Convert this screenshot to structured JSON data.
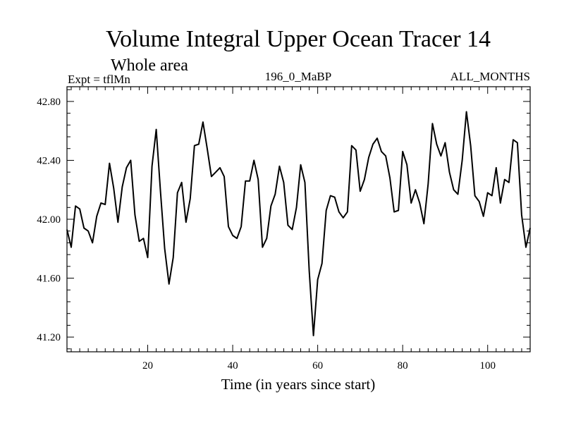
{
  "chart_data": {
    "type": "line",
    "title": "Volume Integral Upper Ocean Tracer 14",
    "subtitle": "Whole area",
    "expt_label": "Expt = tflMn",
    "center_label": "196_0_MaBP",
    "right_label": "ALL_MONTHS",
    "xlabel": "Time (in years since start)",
    "ylabel": "",
    "xlim": [
      1,
      110
    ],
    "ylim": [
      41.1,
      42.9
    ],
    "x_ticks": [
      20,
      40,
      60,
      80,
      100
    ],
    "x_tick_labels": [
      "20",
      "40",
      "60",
      "80",
      "100"
    ],
    "y_ticks": [
      41.2,
      41.6,
      42.0,
      42.4,
      42.8
    ],
    "y_tick_labels": [
      "41.20",
      "41.60",
      "42.00",
      "42.40",
      "42.80"
    ],
    "series": [
      {
        "name": "tracer14",
        "x": [
          1,
          2,
          3,
          4,
          5,
          6,
          7,
          8,
          9,
          10,
          11,
          12,
          13,
          14,
          15,
          16,
          17,
          18,
          19,
          20,
          21,
          22,
          23,
          24,
          25,
          26,
          27,
          28,
          29,
          30,
          31,
          32,
          33,
          34,
          35,
          36,
          37,
          38,
          39,
          40,
          41,
          42,
          43,
          44,
          45,
          46,
          47,
          48,
          49,
          50,
          51,
          52,
          53,
          54,
          55,
          56,
          57,
          58,
          59,
          60,
          61,
          62,
          63,
          64,
          65,
          66,
          67,
          68,
          69,
          70,
          71,
          72,
          73,
          74,
          75,
          76,
          77,
          78,
          79,
          80,
          81,
          82,
          83,
          84,
          85,
          86,
          87,
          88,
          89,
          90,
          91,
          92,
          93,
          94,
          95,
          96,
          97,
          98,
          99,
          100,
          101,
          102,
          103,
          104,
          105,
          106,
          107,
          108,
          109,
          110
        ],
        "values": [
          41.93,
          41.81,
          42.09,
          42.07,
          41.94,
          41.92,
          41.84,
          42.02,
          42.11,
          42.1,
          42.38,
          42.21,
          41.98,
          42.22,
          42.35,
          42.4,
          42.03,
          41.85,
          41.87,
          41.74,
          42.36,
          42.61,
          42.19,
          41.8,
          41.56,
          41.74,
          42.18,
          42.25,
          41.98,
          42.14,
          42.5,
          42.51,
          42.66,
          42.48,
          42.29,
          42.32,
          42.35,
          42.29,
          41.95,
          41.89,
          41.87,
          41.95,
          42.26,
          42.26,
          42.4,
          42.27,
          41.81,
          41.87,
          42.09,
          42.17,
          42.36,
          42.25,
          41.96,
          41.93,
          42.08,
          42.37,
          42.25,
          41.65,
          41.21,
          41.59,
          41.7,
          42.06,
          42.16,
          42.15,
          42.05,
          42.01,
          42.05,
          42.5,
          42.47,
          42.19,
          42.27,
          42.42,
          42.51,
          42.55,
          42.46,
          42.43,
          42.28,
          42.05,
          42.06,
          42.46,
          42.37,
          42.11,
          42.2,
          42.11,
          41.97,
          42.24,
          42.65,
          42.51,
          42.43,
          42.52,
          42.32,
          42.2,
          42.17,
          42.4,
          42.73,
          42.5,
          42.16,
          42.12,
          42.02,
          42.18,
          42.16,
          42.35,
          42.11,
          42.27,
          42.25,
          42.54,
          42.52,
          42.03,
          41.81,
          41.94
        ]
      }
    ]
  }
}
